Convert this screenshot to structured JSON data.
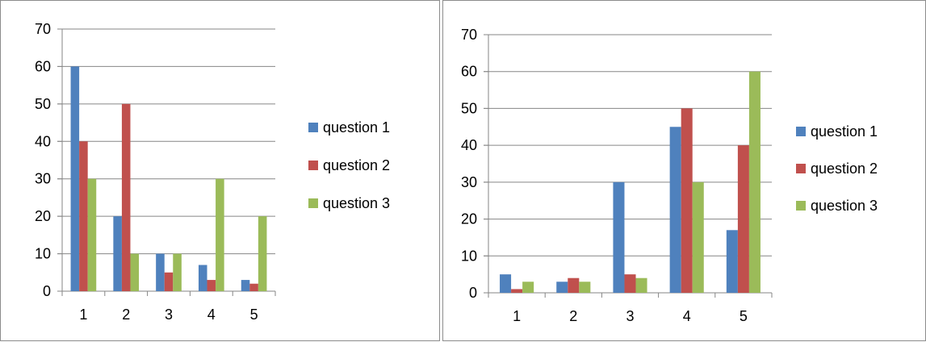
{
  "colors": {
    "question 1": "#4f81bd",
    "question 2": "#c0504d",
    "question 3": "#9bbb59",
    "axis": "#868686",
    "grid": "#868686"
  },
  "chart_data": [
    {
      "type": "bar",
      "title": "",
      "xlabel": "",
      "ylabel": "",
      "categories": [
        "1",
        "2",
        "3",
        "4",
        "5"
      ],
      "ylim": [
        0,
        70
      ],
      "yticks": [
        "0",
        "10",
        "20",
        "30",
        "40",
        "50",
        "60",
        "70"
      ],
      "grid": true,
      "legend_position": "right",
      "series": [
        {
          "name": "question 1",
          "values": [
            60,
            20,
            10,
            7,
            3
          ]
        },
        {
          "name": "question 2",
          "values": [
            40,
            50,
            5,
            3,
            2
          ]
        },
        {
          "name": "question 3",
          "values": [
            30,
            10,
            10,
            30,
            20
          ]
        }
      ]
    },
    {
      "type": "bar",
      "title": "",
      "xlabel": "",
      "ylabel": "",
      "categories": [
        "1",
        "2",
        "3",
        "4",
        "5"
      ],
      "ylim": [
        0,
        70
      ],
      "yticks": [
        "0",
        "10",
        "20",
        "30",
        "40",
        "50",
        "60",
        "70"
      ],
      "grid": true,
      "legend_position": "right",
      "series": [
        {
          "name": "question 1",
          "values": [
            5,
            3,
            30,
            45,
            17
          ]
        },
        {
          "name": "question 2",
          "values": [
            1,
            4,
            5,
            50,
            40
          ]
        },
        {
          "name": "question 3",
          "values": [
            3,
            3,
            4,
            30,
            60
          ]
        }
      ]
    }
  ]
}
